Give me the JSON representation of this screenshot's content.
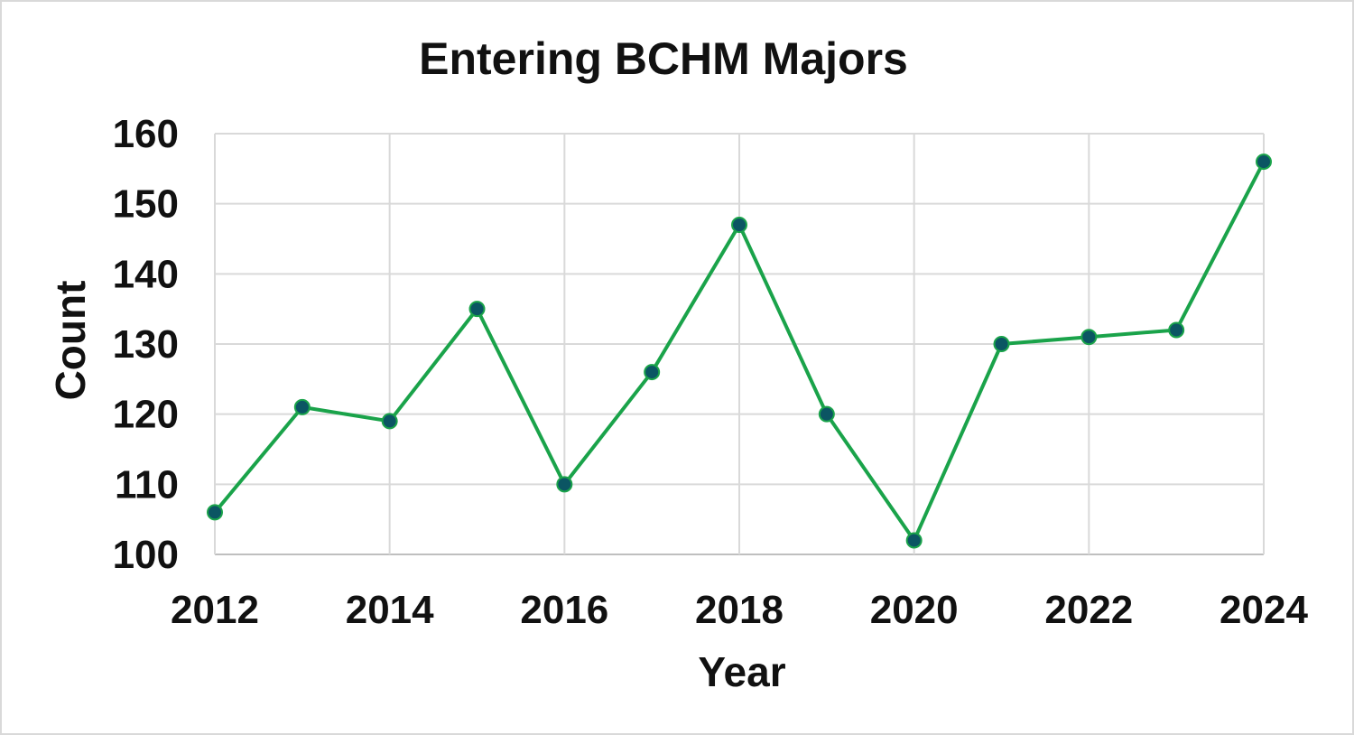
{
  "chart_data": {
    "type": "line",
    "title": "Entering BCHM Majors",
    "xlabel": "Year",
    "ylabel": "Count",
    "x": [
      2012,
      2013,
      2014,
      2015,
      2016,
      2017,
      2018,
      2019,
      2020,
      2021,
      2022,
      2023,
      2024
    ],
    "series": [
      {
        "values": [
          106,
          121,
          119,
          135,
          110,
          126,
          147,
          120,
          102,
          130,
          131,
          132,
          156
        ]
      }
    ],
    "xlim": [
      2012,
      2024
    ],
    "ylim": [
      100,
      160
    ],
    "xticks": [
      "2012",
      "2014",
      "2016",
      "2018",
      "2020",
      "2022",
      "2024"
    ],
    "yticks": [
      "100",
      "110",
      "120",
      "130",
      "140",
      "150",
      "160"
    ],
    "grid": true,
    "legend": "none",
    "line_color": "#1aa34a",
    "marker_color": "#0b5563"
  }
}
